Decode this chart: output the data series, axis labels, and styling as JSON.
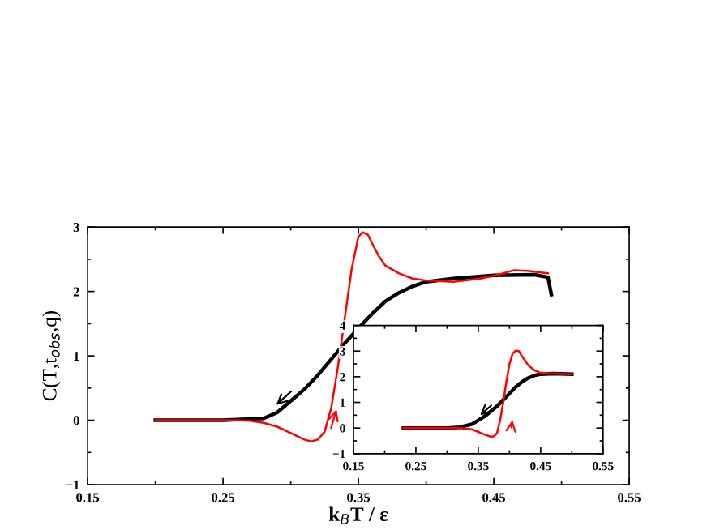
{
  "chart_data": [
    {
      "type": "line",
      "xlabel": "k$_{B}$T / ε",
      "ylabel": "C(T,t$_{obs}$,q)",
      "xlim": [
        0.15,
        0.55
      ],
      "ylim": [
        -1,
        3
      ],
      "xticks": [
        0.15,
        0.25,
        0.35,
        0.45,
        0.55
      ],
      "yticks": [
        {
          "value": -1,
          "label": "−1"
        },
        0,
        1,
        2,
        3
      ],
      "grid": false,
      "marker": "none",
      "line_style": "solid",
      "series": [
        {
          "color": "#000000",
          "x": [
            0.2,
            0.25,
            0.28,
            0.29,
            0.3,
            0.31,
            0.32,
            0.33,
            0.34,
            0.35,
            0.36,
            0.37,
            0.38,
            0.39,
            0.4,
            0.42,
            0.45,
            0.48,
            0.49,
            0.4925
          ],
          "values": [
            0,
            0,
            0.03,
            0.12,
            0.3,
            0.48,
            0.7,
            0.95,
            1.2,
            1.43,
            1.65,
            1.85,
            1.98,
            2.08,
            2.15,
            2.2,
            2.25,
            2.26,
            2.22,
            1.95
          ]
        },
        {
          "color": "#ff0000",
          "x": [
            0.2,
            0.26,
            0.27,
            0.28,
            0.29,
            0.3,
            0.31,
            0.315,
            0.32,
            0.325,
            0.33,
            0.335,
            0.34,
            0.345,
            0.35,
            0.353,
            0.357,
            0.36,
            0.365,
            0.37,
            0.38,
            0.39,
            0.4,
            0.42,
            0.44,
            0.455,
            0.465,
            0.475,
            0.49
          ],
          "values": [
            0,
            0,
            -0.01,
            -0.04,
            -0.1,
            -0.2,
            -0.3,
            -0.33,
            -0.3,
            -0.18,
            0.2,
            0.85,
            1.6,
            2.35,
            2.85,
            2.92,
            2.88,
            2.75,
            2.55,
            2.4,
            2.28,
            2.2,
            2.17,
            2.15,
            2.2,
            2.27,
            2.33,
            2.32,
            2.28
          ]
        }
      ]
    },
    {
      "type": "line",
      "xlim": [
        0.15,
        0.55
      ],
      "ylim": [
        -1,
        4
      ],
      "xticks": [
        0.15,
        0.25,
        0.35,
        0.45,
        0.55
      ],
      "yticks": [
        {
          "value": -1,
          "label": "−1"
        },
        0,
        1,
        2,
        3,
        4
      ],
      "grid": false,
      "marker": "none",
      "line_style": "solid",
      "series": [
        {
          "color": "#000000",
          "x": [
            0.23,
            0.3,
            0.32,
            0.34,
            0.36,
            0.38,
            0.39,
            0.4,
            0.41,
            0.42,
            0.43,
            0.44,
            0.45,
            0.47,
            0.5
          ],
          "values": [
            0,
            0,
            0.03,
            0.15,
            0.45,
            0.85,
            1.1,
            1.35,
            1.6,
            1.8,
            1.95,
            2.05,
            2.1,
            2.12,
            2.1
          ]
        },
        {
          "color": "#ff0000",
          "x": [
            0.23,
            0.32,
            0.34,
            0.36,
            0.37,
            0.375,
            0.38,
            0.385,
            0.39,
            0.395,
            0.4,
            0.405,
            0.41,
            0.415,
            0.42,
            0.43,
            0.44,
            0.45,
            0.47,
            0.5
          ],
          "values": [
            0,
            0,
            -0.05,
            -0.25,
            -0.34,
            -0.32,
            -0.2,
            0.3,
            1.0,
            1.8,
            2.5,
            2.9,
            3.02,
            3.0,
            2.8,
            2.45,
            2.25,
            2.15,
            2.12,
            2.1
          ]
        }
      ]
    }
  ]
}
